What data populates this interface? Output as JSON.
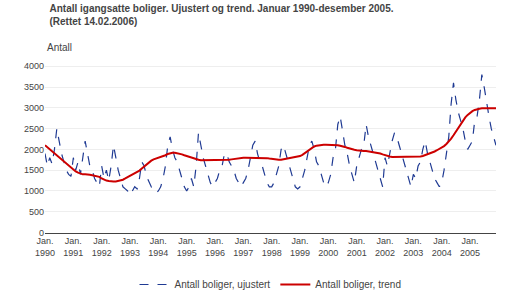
{
  "chart_data": {
    "type": "line",
    "title": "Antall igangsatte boliger. Ujustert og trend. Januar 1990-desember 2005.",
    "subtitle": "(Rettet 14.02.2006)",
    "ylabel": "Antall",
    "categories": [
      "Jan.\n1990",
      null,
      null,
      null,
      null,
      null,
      null,
      null,
      null,
      null,
      null,
      null,
      "Jan.\n1991",
      null,
      null,
      null,
      null,
      null,
      null,
      null,
      null,
      null,
      null,
      null,
      "Jan.\n1992",
      null,
      null,
      null,
      null,
      null,
      null,
      null,
      null,
      null,
      null,
      null,
      "Jan.\n1993",
      null,
      null,
      null,
      null,
      null,
      null,
      null,
      null,
      null,
      null,
      null,
      "Jan.\n1994",
      null,
      null,
      null,
      null,
      null,
      null,
      null,
      null,
      null,
      null,
      null,
      "Jan.\n1995",
      null,
      null,
      null,
      null,
      null,
      null,
      null,
      null,
      null,
      null,
      null,
      "Jan.\n1996",
      null,
      null,
      null,
      null,
      null,
      null,
      null,
      null,
      null,
      null,
      null,
      "Jan.\n1997",
      null,
      null,
      null,
      null,
      null,
      null,
      null,
      null,
      null,
      null,
      null,
      "Jan.\n1998",
      null,
      null,
      null,
      null,
      null,
      null,
      null,
      null,
      null,
      null,
      null,
      "Jan.\n1999",
      null,
      null,
      null,
      null,
      null,
      null,
      null,
      null,
      null,
      null,
      null,
      "Jan.\n2000",
      null,
      null,
      null,
      null,
      null,
      null,
      null,
      null,
      null,
      null,
      null,
      "Jan.\n2001",
      null,
      null,
      null,
      null,
      null,
      null,
      null,
      null,
      null,
      null,
      null,
      "Jan.\n2002",
      null,
      null,
      null,
      null,
      null,
      null,
      null,
      null,
      null,
      null,
      null,
      "Jan.\n2003",
      null,
      null,
      null,
      null,
      null,
      null,
      null,
      null,
      null,
      null,
      null,
      "Jan.\n2004",
      null,
      null,
      null,
      null,
      null,
      null,
      null,
      null,
      null,
      null,
      null,
      "Jan.\n2005",
      null,
      null,
      null,
      null,
      null,
      null,
      null,
      null,
      null,
      null,
      null
    ],
    "series": [
      {
        "name": "Antall boliger, ujustert",
        "color": "#1f3a93",
        "line_style": "dashed",
        "values": [
          1900,
          1600,
          1800,
          1650,
          2000,
          2500,
          2200,
          1900,
          1700,
          1500,
          1400,
          1350,
          1800,
          1500,
          1700,
          1400,
          1800,
          2200,
          1900,
          1600,
          1500,
          1300,
          1200,
          1100,
          1600,
          1300,
          1500,
          1250,
          1600,
          2100,
          1800,
          1500,
          1300,
          1100,
          1050,
          1000,
          900,
          1000,
          1100,
          1050,
          1300,
          1700,
          1600,
          1350,
          1200,
          1100,
          1000,
          950,
          1000,
          1100,
          1300,
          1600,
          2100,
          2300,
          2000,
          1800,
          1700,
          1500,
          1300,
          1100,
          1000,
          1100,
          1300,
          1100,
          1600,
          2400,
          2100,
          1800,
          1600,
          1400,
          1200,
          1100,
          1200,
          1300,
          1500,
          1600,
          1900,
          1900,
          1700,
          1600,
          1500,
          1300,
          1200,
          1100,
          1200,
          1300,
          1500,
          1800,
          2100,
          2200,
          1900,
          1700,
          1600,
          1400,
          1200,
          1100,
          1100,
          1200,
          1400,
          1600,
          2000,
          2100,
          1900,
          1700,
          1500,
          1300,
          1100,
          1050,
          1100,
          1300,
          1500,
          1800,
          2100,
          2200,
          2000,
          1700,
          1600,
          1400,
          1200,
          1100,
          1200,
          1400,
          1800,
          2000,
          2600,
          2800,
          2400,
          2100,
          1900,
          1600,
          1400,
          1200,
          1600,
          1800,
          2000,
          2100,
          2600,
          2300,
          2100,
          1900,
          1700,
          1500,
          1300,
          1100,
          1800,
          1600,
          1900,
          2200,
          2400,
          2300,
          2100,
          1900,
          1700,
          1500,
          1300,
          1100,
          1400,
          1300,
          1600,
          1700,
          2000,
          2200,
          1900,
          1700,
          1500,
          1300,
          1200,
          1100,
          1200,
          1500,
          1900,
          2300,
          3100,
          3600,
          3200,
          2900,
          2700,
          2500,
          2200,
          2000,
          2100,
          2200,
          2700,
          2800,
          3200,
          3800,
          3500,
          3100,
          2800,
          2500,
          2300,
          2100
        ]
      },
      {
        "name": "Antall boliger, trend",
        "color": "#cc0000",
        "line_style": "solid",
        "values": [
          2100,
          2050,
          2000,
          1950,
          1900,
          1850,
          1800,
          1750,
          1700,
          1650,
          1600,
          1550,
          1500,
          1470,
          1440,
          1420,
          1400,
          1400,
          1400,
          1390,
          1380,
          1370,
          1360,
          1340,
          1300,
          1270,
          1250,
          1240,
          1230,
          1230,
          1230,
          1240,
          1250,
          1270,
          1300,
          1330,
          1360,
          1390,
          1420,
          1450,
          1490,
          1540,
          1590,
          1640,
          1690,
          1730,
          1760,
          1780,
          1790,
          1810,
          1830,
          1860,
          1890,
          1910,
          1920,
          1920,
          1910,
          1900,
          1880,
          1860,
          1840,
          1820,
          1800,
          1780,
          1760,
          1750,
          1740,
          1740,
          1740,
          1740,
          1740,
          1740,
          1740,
          1740,
          1740,
          1740,
          1740,
          1740,
          1750,
          1760,
          1770,
          1780,
          1790,
          1800,
          1800,
          1800,
          1800,
          1800,
          1800,
          1800,
          1800,
          1800,
          1800,
          1800,
          1790,
          1780,
          1770,
          1760,
          1750,
          1750,
          1750,
          1760,
          1770,
          1780,
          1790,
          1800,
          1810,
          1820,
          1840,
          1870,
          1910,
          1960,
          2000,
          2040,
          2070,
          2090,
          2100,
          2110,
          2110,
          2110,
          2110,
          2110,
          2110,
          2110,
          2100,
          2090,
          2080,
          2060,
          2040,
          2020,
          2000,
          1990,
          1980,
          1970,
          1960,
          1960,
          1960,
          1950,
          1950,
          1940,
          1930,
          1920,
          1900,
          1880,
          1860,
          1840,
          1830,
          1820,
          1820,
          1820,
          1820,
          1820,
          1820,
          1820,
          1820,
          1820,
          1820,
          1820,
          1820,
          1830,
          1840,
          1860,
          1880,
          1900,
          1920,
          1950,
          1980,
          2010,
          2040,
          2080,
          2130,
          2190,
          2260,
          2340,
          2430,
          2530,
          2620,
          2700,
          2770,
          2830,
          2880,
          2920,
          2950,
          2970,
          2980,
          2990,
          2990,
          2990,
          2990,
          2990,
          2990,
          2990
        ]
      }
    ],
    "ylim": [
      0,
      4200
    ],
    "yticks": [
      0,
      500,
      1000,
      1500,
      2000,
      2500,
      3000,
      3500,
      4000
    ],
    "grid": true,
    "legend": "bottom"
  }
}
